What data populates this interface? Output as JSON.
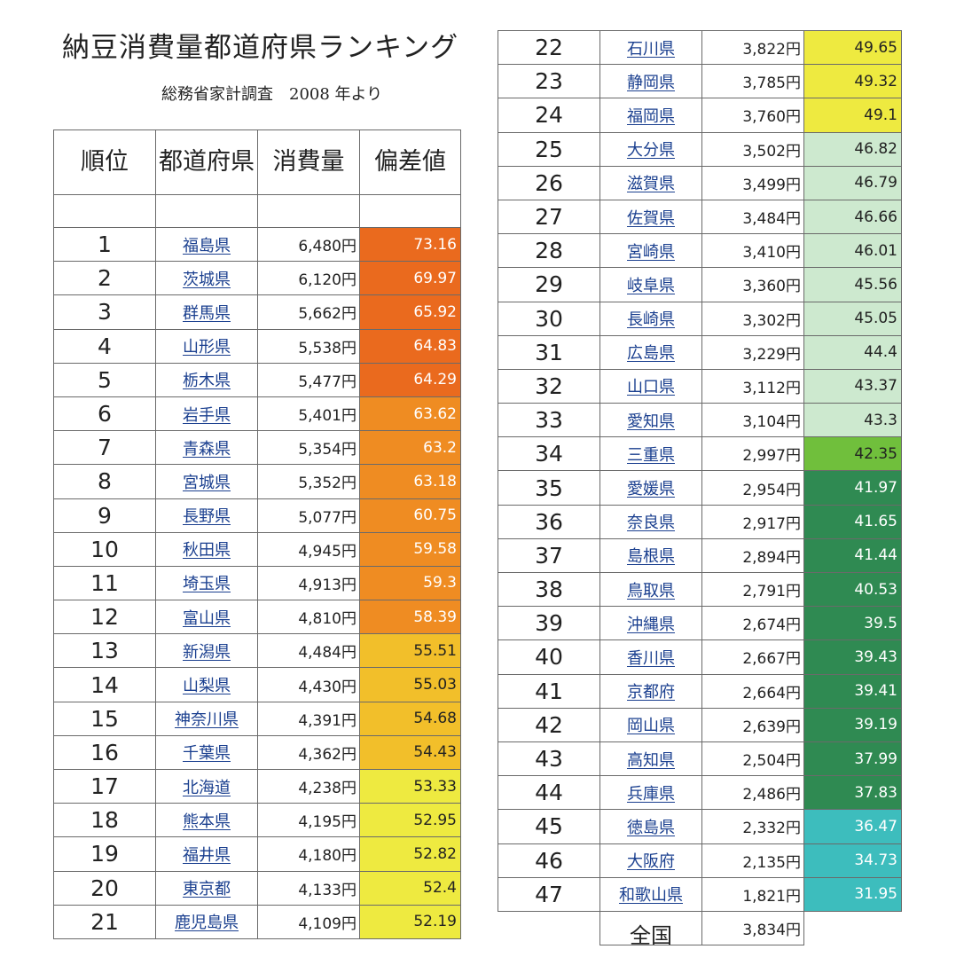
{
  "title": "納豆消費量都道府県ランキング",
  "subtitle": "総務省家計調査　2008 年より",
  "headers": {
    "rank": "順位",
    "prefecture": "都道府県",
    "consumption": "消費量",
    "deviation": "偏差値"
  },
  "colors": {
    "dark_orange": "#ea6a1e",
    "orange": "#ef8c22",
    "amber": "#f2bf2a",
    "yellow": "#eeea40",
    "light_green": "#cde9cf",
    "green": "#70bf3c",
    "dark_green": "#2f8a52",
    "teal": "#3dbdbd"
  },
  "rows": [
    {
      "rank": "1",
      "pref": "福島県",
      "amount": "6,480円",
      "dev": "73.16",
      "color": "dark_orange"
    },
    {
      "rank": "2",
      "pref": "茨城県",
      "amount": "6,120円",
      "dev": "69.97",
      "color": "dark_orange"
    },
    {
      "rank": "3",
      "pref": "群馬県",
      "amount": "5,662円",
      "dev": "65.92",
      "color": "dark_orange"
    },
    {
      "rank": "4",
      "pref": "山形県",
      "amount": "5,538円",
      "dev": "64.83",
      "color": "dark_orange"
    },
    {
      "rank": "5",
      "pref": "栃木県",
      "amount": "5,477円",
      "dev": "64.29",
      "color": "dark_orange"
    },
    {
      "rank": "6",
      "pref": "岩手県",
      "amount": "5,401円",
      "dev": "63.62",
      "color": "orange"
    },
    {
      "rank": "7",
      "pref": "青森県",
      "amount": "5,354円",
      "dev": "63.2",
      "color": "orange"
    },
    {
      "rank": "8",
      "pref": "宮城県",
      "amount": "5,352円",
      "dev": "63.18",
      "color": "orange"
    },
    {
      "rank": "9",
      "pref": "長野県",
      "amount": "5,077円",
      "dev": "60.75",
      "color": "orange"
    },
    {
      "rank": "10",
      "pref": "秋田県",
      "amount": "4,945円",
      "dev": "59.58",
      "color": "orange"
    },
    {
      "rank": "11",
      "pref": "埼玉県",
      "amount": "4,913円",
      "dev": "59.3",
      "color": "orange"
    },
    {
      "rank": "12",
      "pref": "富山県",
      "amount": "4,810円",
      "dev": "58.39",
      "color": "orange"
    },
    {
      "rank": "13",
      "pref": "新潟県",
      "amount": "4,484円",
      "dev": "55.51",
      "color": "amber"
    },
    {
      "rank": "14",
      "pref": "山梨県",
      "amount": "4,430円",
      "dev": "55.03",
      "color": "amber"
    },
    {
      "rank": "15",
      "pref": "神奈川県",
      "amount": "4,391円",
      "dev": "54.68",
      "color": "amber"
    },
    {
      "rank": "16",
      "pref": "千葉県",
      "amount": "4,362円",
      "dev": "54.43",
      "color": "amber"
    },
    {
      "rank": "17",
      "pref": "北海道",
      "amount": "4,238円",
      "dev": "53.33",
      "color": "yellow"
    },
    {
      "rank": "18",
      "pref": "熊本県",
      "amount": "4,195円",
      "dev": "52.95",
      "color": "yellow"
    },
    {
      "rank": "19",
      "pref": "福井県",
      "amount": "4,180円",
      "dev": "52.82",
      "color": "yellow"
    },
    {
      "rank": "20",
      "pref": "東京都",
      "amount": "4,133円",
      "dev": "52.4",
      "color": "yellow"
    },
    {
      "rank": "21",
      "pref": "鹿児島県",
      "amount": "4,109円",
      "dev": "52.19",
      "color": "yellow"
    },
    {
      "rank": "22",
      "pref": "石川県",
      "amount": "3,822円",
      "dev": "49.65",
      "color": "yellow"
    },
    {
      "rank": "23",
      "pref": "静岡県",
      "amount": "3,785円",
      "dev": "49.32",
      "color": "yellow"
    },
    {
      "rank": "24",
      "pref": "福岡県",
      "amount": "3,760円",
      "dev": "49.1",
      "color": "yellow"
    },
    {
      "rank": "25",
      "pref": "大分県",
      "amount": "3,502円",
      "dev": "46.82",
      "color": "light_green"
    },
    {
      "rank": "26",
      "pref": "滋賀県",
      "amount": "3,499円",
      "dev": "46.79",
      "color": "light_green"
    },
    {
      "rank": "27",
      "pref": "佐賀県",
      "amount": "3,484円",
      "dev": "46.66",
      "color": "light_green"
    },
    {
      "rank": "28",
      "pref": "宮崎県",
      "amount": "3,410円",
      "dev": "46.01",
      "color": "light_green"
    },
    {
      "rank": "29",
      "pref": "岐阜県",
      "amount": "3,360円",
      "dev": "45.56",
      "color": "light_green"
    },
    {
      "rank": "30",
      "pref": "長崎県",
      "amount": "3,302円",
      "dev": "45.05",
      "color": "light_green"
    },
    {
      "rank": "31",
      "pref": "広島県",
      "amount": "3,229円",
      "dev": "44.4",
      "color": "light_green"
    },
    {
      "rank": "32",
      "pref": "山口県",
      "amount": "3,112円",
      "dev": "43.37",
      "color": "light_green"
    },
    {
      "rank": "33",
      "pref": "愛知県",
      "amount": "3,104円",
      "dev": "43.3",
      "color": "light_green"
    },
    {
      "rank": "34",
      "pref": "三重県",
      "amount": "2,997円",
      "dev": "42.35",
      "color": "green"
    },
    {
      "rank": "35",
      "pref": "愛媛県",
      "amount": "2,954円",
      "dev": "41.97",
      "color": "dark_green"
    },
    {
      "rank": "36",
      "pref": "奈良県",
      "amount": "2,917円",
      "dev": "41.65",
      "color": "dark_green"
    },
    {
      "rank": "37",
      "pref": "島根県",
      "amount": "2,894円",
      "dev": "41.44",
      "color": "dark_green"
    },
    {
      "rank": "38",
      "pref": "鳥取県",
      "amount": "2,791円",
      "dev": "40.53",
      "color": "dark_green"
    },
    {
      "rank": "39",
      "pref": "沖縄県",
      "amount": "2,674円",
      "dev": "39.5",
      "color": "dark_green"
    },
    {
      "rank": "40",
      "pref": "香川県",
      "amount": "2,667円",
      "dev": "39.43",
      "color": "dark_green"
    },
    {
      "rank": "41",
      "pref": "京都府",
      "amount": "2,664円",
      "dev": "39.41",
      "color": "dark_green"
    },
    {
      "rank": "42",
      "pref": "岡山県",
      "amount": "2,639円",
      "dev": "39.19",
      "color": "dark_green"
    },
    {
      "rank": "43",
      "pref": "高知県",
      "amount": "2,504円",
      "dev": "37.99",
      "color": "dark_green"
    },
    {
      "rank": "44",
      "pref": "兵庫県",
      "amount": "2,486円",
      "dev": "37.83",
      "color": "dark_green"
    },
    {
      "rank": "45",
      "pref": "徳島県",
      "amount": "2,332円",
      "dev": "36.47",
      "color": "teal"
    },
    {
      "rank": "46",
      "pref": "大阪府",
      "amount": "2,135円",
      "dev": "34.73",
      "color": "teal"
    },
    {
      "rank": "47",
      "pref": "和歌山県",
      "amount": "1,821円",
      "dev": "31.95",
      "color": "teal"
    }
  ],
  "nationwide": {
    "label": "全国",
    "amount": "3,834円"
  }
}
